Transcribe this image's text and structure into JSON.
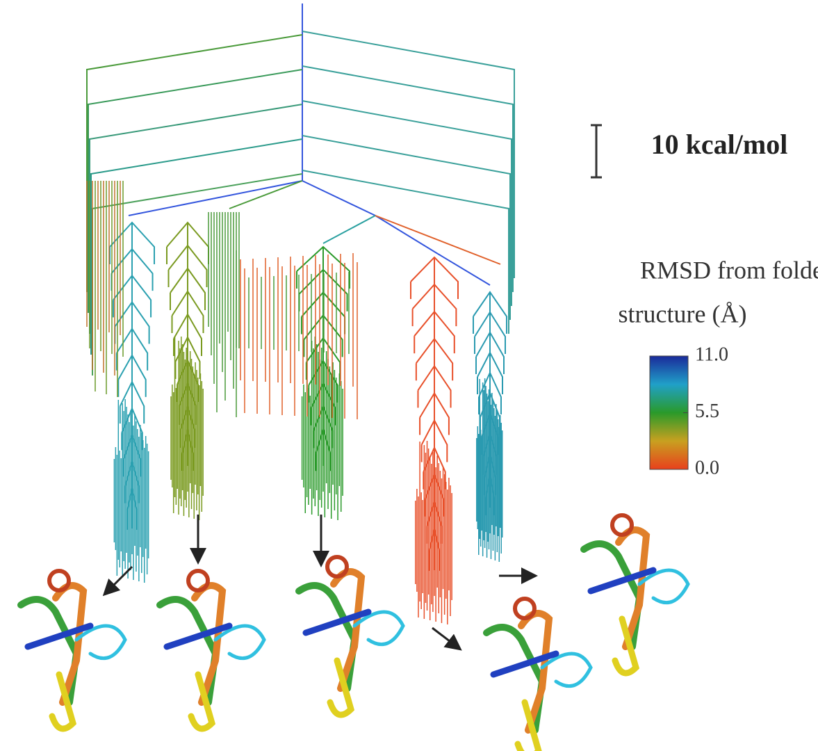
{
  "scale_bar": {
    "label": "10 kcal/mol"
  },
  "colorbar": {
    "title": [
      "RMSD from folded",
      "structure (Å)"
    ],
    "range": [
      0,
      11
    ],
    "ticks": [
      {
        "value": 11,
        "label": "11.0"
      },
      {
        "value": 5.5,
        "label": "5.5"
      },
      {
        "value": 0,
        "label": "0.0"
      }
    ]
  }
}
